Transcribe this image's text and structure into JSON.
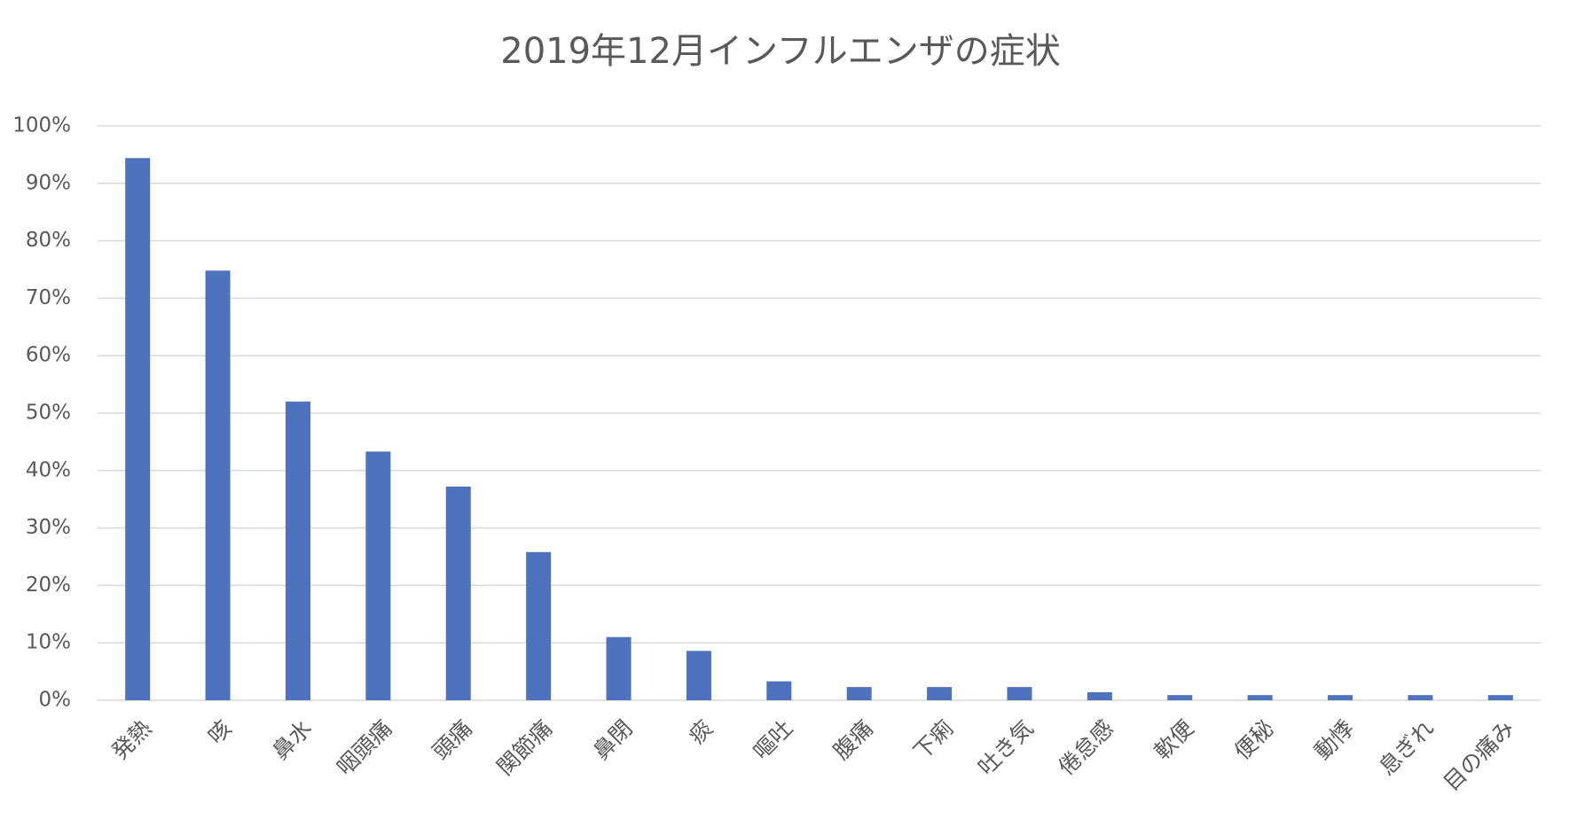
{
  "chart_data": {
    "type": "bar",
    "title": "2019年12月インフルエンザの症状",
    "categories": [
      "発熱",
      "咳",
      "鼻水",
      "咽頭痛",
      "頭痛",
      "関節痛",
      "鼻閉",
      "痰",
      "嘔吐",
      "腹痛",
      "下痢",
      "吐き気",
      "倦怠感",
      "軟便",
      "便秘",
      "動悸",
      "息ぎれ",
      "目の痛み"
    ],
    "values": [
      94.4,
      74.8,
      52,
      43.3,
      37.2,
      25.8,
      11,
      8.6,
      3.3,
      2.3,
      2.3,
      2.3,
      1.4,
      0.9,
      0.9,
      0.9,
      0.9,
      0.9
    ],
    "color": "#4f72be",
    "ylim": [
      0,
      100
    ],
    "yticks": [
      {
        "value": 0,
        "label": "0%"
      },
      {
        "value": 10,
        "label": "10%"
      },
      {
        "value": 20,
        "label": "20%"
      },
      {
        "value": 30,
        "label": "30%"
      },
      {
        "value": 40,
        "label": "40%"
      },
      {
        "value": 50,
        "label": "50%"
      },
      {
        "value": 60,
        "label": "60%"
      },
      {
        "value": 70,
        "label": "70%"
      },
      {
        "value": 80,
        "label": "80%"
      },
      {
        "value": 90,
        "label": "90%"
      },
      {
        "value": 100,
        "label": "100%"
      }
    ],
    "grid": true
  }
}
